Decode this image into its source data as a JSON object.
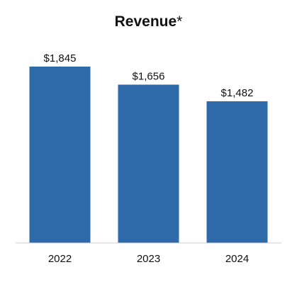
{
  "chart_data": {
    "type": "bar",
    "title": "Revenue",
    "title_suffix": "*",
    "categories": [
      "2022",
      "2023",
      "2024"
    ],
    "values": [
      1845,
      1656,
      1482
    ],
    "data_labels": [
      "$1,845",
      "$1,656",
      "$1,482"
    ],
    "xlabel": "",
    "ylabel": "",
    "ylim": [
      0,
      2000
    ],
    "grid": false,
    "legend": "none",
    "colors": {
      "bar": "#2e6aa9",
      "baseline": "#cccccc",
      "text": "#111111"
    }
  }
}
